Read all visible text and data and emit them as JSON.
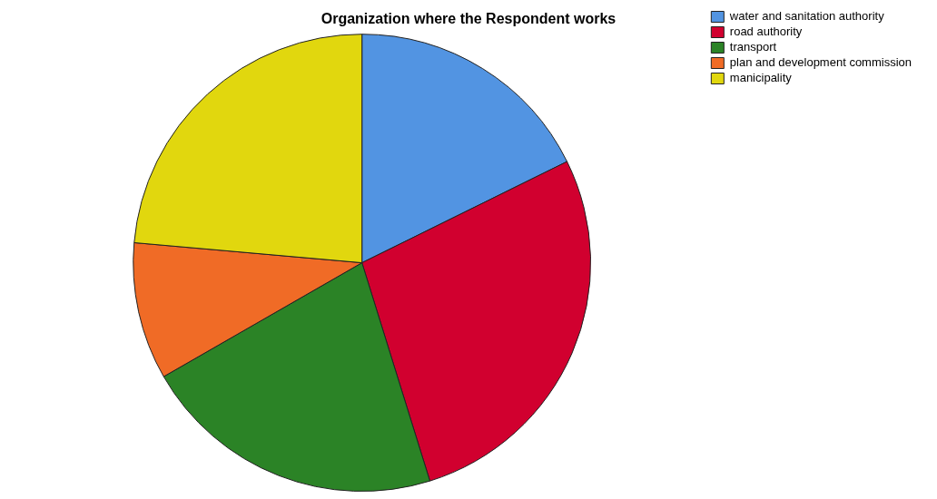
{
  "chart_data": {
    "type": "pie",
    "title": "Organization where the Respondent works",
    "categories": [
      "water and sanitation authority",
      "road authority",
      "transport",
      "plan and development commission",
      "manicipality"
    ],
    "values": [
      17.7,
      27.5,
      21.5,
      9.7,
      23.6
    ],
    "colors": [
      "#5294e2",
      "#d1002f",
      "#2b8326",
      "#f06b26",
      "#e1d70e"
    ],
    "legend": "top right"
  }
}
